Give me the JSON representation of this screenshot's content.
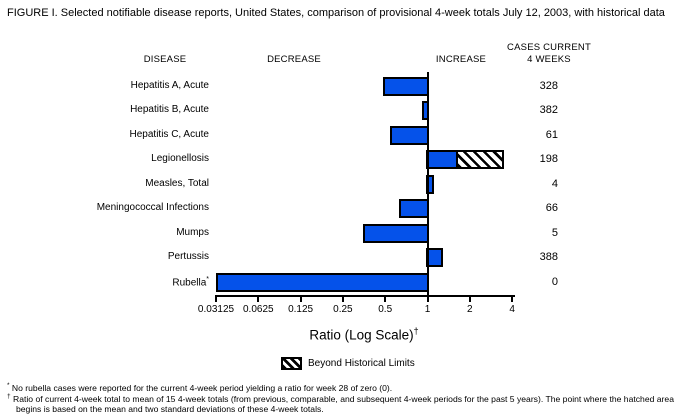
{
  "title": "FIGURE I. Selected notifiable disease reports, United States, comparison of provisional 4-week totals July 12, 2003, with historical data",
  "headers": {
    "disease": "DISEASE",
    "decrease": "DECREASE",
    "increase": "INCREASE",
    "cases_line1": "CASES CURRENT",
    "cases_line2": "4 WEEKS"
  },
  "chart_data": {
    "type": "bar",
    "orientation": "horizontal",
    "xscale": "log2",
    "xlabel": "Ratio (Log Scale)",
    "xlabel_sup": "†",
    "xlim": [
      0.03125,
      4
    ],
    "xticks": [
      "0.03125",
      "0.0625",
      "0.125",
      "0.25",
      "0.5",
      "1",
      "2",
      "4"
    ],
    "baseline": 1,
    "legend_label": "Beyond Historical Limits",
    "colors": {
      "bar_fill": "#0552ea",
      "bar_border": "#000000"
    },
    "rows": [
      {
        "disease": "Hepatitis A, Acute",
        "ratio": 0.48,
        "cases": "328"
      },
      {
        "disease": "Hepatitis B, Acute",
        "ratio": 0.91,
        "cases": "382"
      },
      {
        "disease": "Hepatitis C, Acute",
        "ratio": 0.54,
        "cases": "61"
      },
      {
        "disease": "Legionellosis",
        "ratio": 3.5,
        "beyond_from": 1.58,
        "cases": "198"
      },
      {
        "disease": "Measles, Total",
        "ratio": 1.12,
        "cases": "4"
      },
      {
        "disease": "Meningococcal Infections",
        "ratio": 0.63,
        "cases": "66"
      },
      {
        "disease": "Mumps",
        "ratio": 0.35,
        "cases": "5"
      },
      {
        "disease": "Pertussis",
        "ratio": 1.28,
        "cases": "388"
      },
      {
        "disease": "Rubella",
        "marker": "*",
        "ratio": 0.03125,
        "cases": "0"
      }
    ]
  },
  "footnotes": [
    {
      "marker": "*",
      "text": "No rubella cases were reported for the current 4-week period yielding a ratio for week 28 of zero (0)."
    },
    {
      "marker": "†",
      "text": "Ratio of current 4-week total to mean of 15 4-week totals (from previous, comparable, and subsequent 4-week periods for the past 5 years). The point where the hatched area begins is based on the mean and two standard deviations of these 4-week totals."
    }
  ]
}
